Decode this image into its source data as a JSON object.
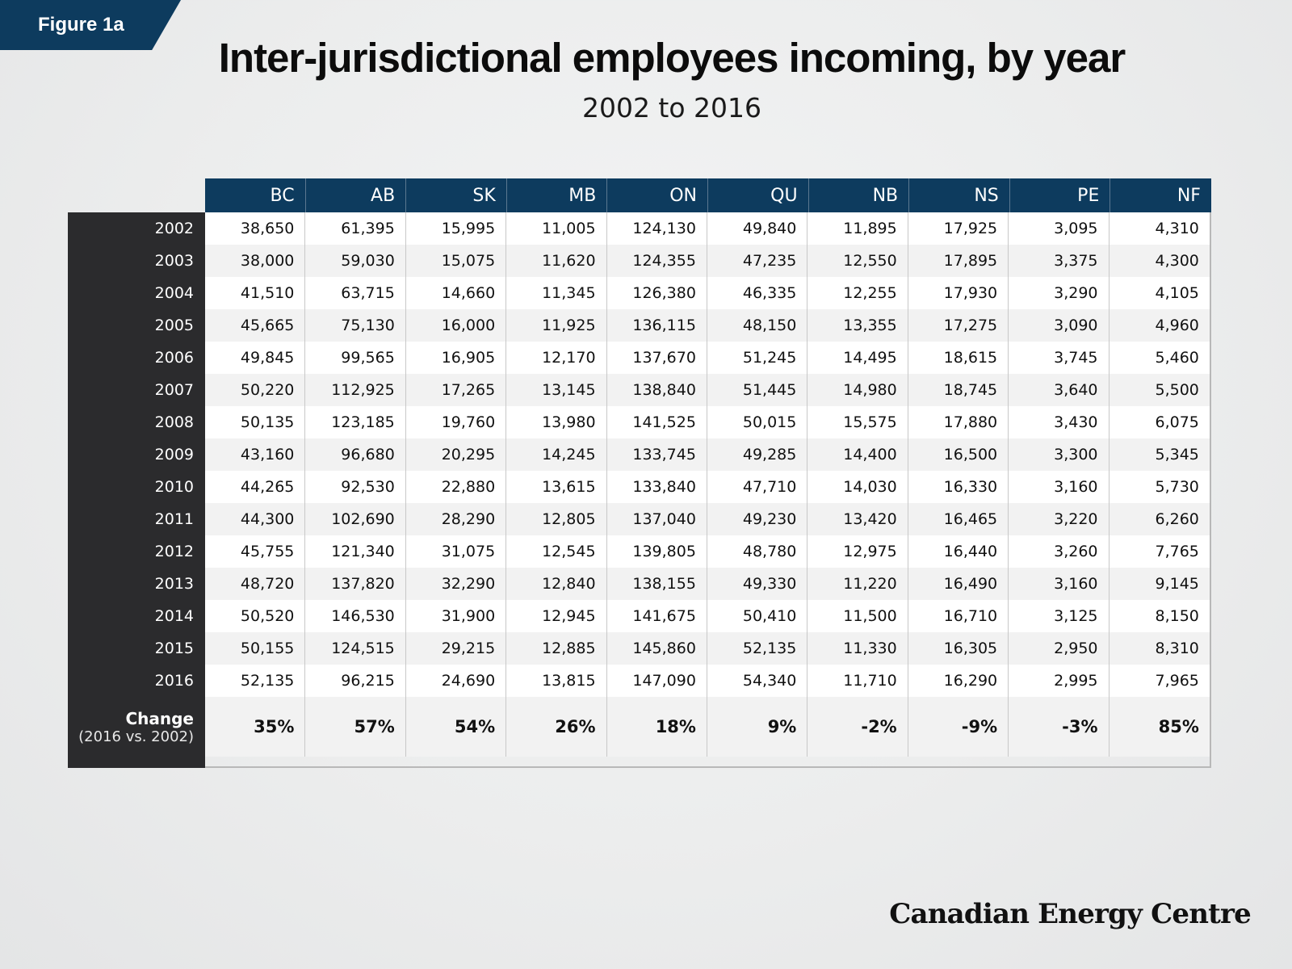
{
  "figure_label": "Figure 1a",
  "chart_data": {
    "type": "table",
    "title": "Inter-jurisdictional employees incoming, by year",
    "subtitle": "2002 to 2016",
    "columns": [
      "BC",
      "AB",
      "SK",
      "MB",
      "ON",
      "QU",
      "NB",
      "NS",
      "PE",
      "NF"
    ],
    "rows": [
      {
        "year": "2002",
        "values": [
          "38,650",
          "61,395",
          "15,995",
          "11,005",
          "124,130",
          "49,840",
          "11,895",
          "17,925",
          "3,095",
          "4,310"
        ]
      },
      {
        "year": "2003",
        "values": [
          "38,000",
          "59,030",
          "15,075",
          "11,620",
          "124,355",
          "47,235",
          "12,550",
          "17,895",
          "3,375",
          "4,300"
        ]
      },
      {
        "year": "2004",
        "values": [
          "41,510",
          "63,715",
          "14,660",
          "11,345",
          "126,380",
          "46,335",
          "12,255",
          "17,930",
          "3,290",
          "4,105"
        ]
      },
      {
        "year": "2005",
        "values": [
          "45,665",
          "75,130",
          "16,000",
          "11,925",
          "136,115",
          "48,150",
          "13,355",
          "17,275",
          "3,090",
          "4,960"
        ]
      },
      {
        "year": "2006",
        "values": [
          "49,845",
          "99,565",
          "16,905",
          "12,170",
          "137,670",
          "51,245",
          "14,495",
          "18,615",
          "3,745",
          "5,460"
        ]
      },
      {
        "year": "2007",
        "values": [
          "50,220",
          "112,925",
          "17,265",
          "13,145",
          "138,840",
          "51,445",
          "14,980",
          "18,745",
          "3,640",
          "5,500"
        ]
      },
      {
        "year": "2008",
        "values": [
          "50,135",
          "123,185",
          "19,760",
          "13,980",
          "141,525",
          "50,015",
          "15,575",
          "17,880",
          "3,430",
          "6,075"
        ]
      },
      {
        "year": "2009",
        "values": [
          "43,160",
          "96,680",
          "20,295",
          "14,245",
          "133,745",
          "49,285",
          "14,400",
          "16,500",
          "3,300",
          "5,345"
        ]
      },
      {
        "year": "2010",
        "values": [
          "44,265",
          "92,530",
          "22,880",
          "13,615",
          "133,840",
          "47,710",
          "14,030",
          "16,330",
          "3,160",
          "5,730"
        ]
      },
      {
        "year": "2011",
        "values": [
          "44,300",
          "102,690",
          "28,290",
          "12,805",
          "137,040",
          "49,230",
          "13,420",
          "16,465",
          "3,220",
          "6,260"
        ]
      },
      {
        "year": "2012",
        "values": [
          "45,755",
          "121,340",
          "31,075",
          "12,545",
          "139,805",
          "48,780",
          "12,975",
          "16,440",
          "3,260",
          "7,765"
        ]
      },
      {
        "year": "2013",
        "values": [
          "48,720",
          "137,820",
          "32,290",
          "12,840",
          "138,155",
          "49,330",
          "11,220",
          "16,490",
          "3,160",
          "9,145"
        ]
      },
      {
        "year": "2014",
        "values": [
          "50,520",
          "146,530",
          "31,900",
          "12,945",
          "141,675",
          "50,410",
          "11,500",
          "16,710",
          "3,125",
          "8,150"
        ]
      },
      {
        "year": "2015",
        "values": [
          "50,155",
          "124,515",
          "29,215",
          "12,885",
          "145,860",
          "52,135",
          "11,330",
          "16,305",
          "2,950",
          "8,310"
        ]
      },
      {
        "year": "2016",
        "values": [
          "52,135",
          "96,215",
          "24,690",
          "13,815",
          "147,090",
          "54,340",
          "11,710",
          "16,290",
          "2,995",
          "7,965"
        ]
      }
    ],
    "change": {
      "label": "Change",
      "sublabel": "(2016 vs. 2002)",
      "values": [
        "35%",
        "57%",
        "54%",
        "26%",
        "18%",
        "9%",
        "-2%",
        "-9%",
        "-3%",
        "85%"
      ]
    },
    "colors": {
      "header_bg": "#0d3b5e",
      "label_col_bg": "#2b2b2d",
      "row_alt_bg": "#f2f2f2"
    }
  },
  "brand": "Canadian Energy Centre"
}
